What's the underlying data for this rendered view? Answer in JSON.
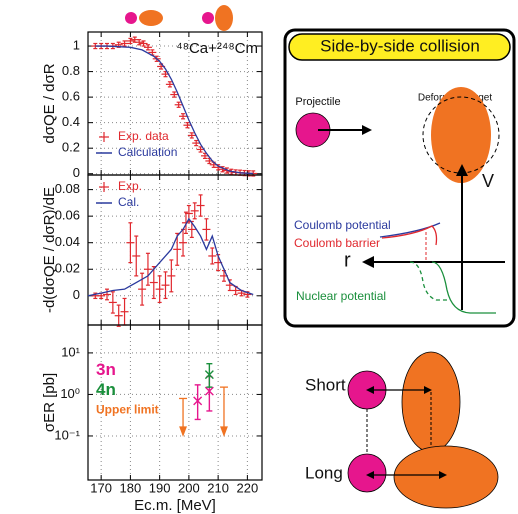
{
  "chart_data": [
    {
      "type": "errorbar",
      "ylabel": "dσQE / dσR",
      "annotation": "⁴⁸Ca+²⁴⁸Cm",
      "xlim": [
        165.5,
        225
      ],
      "xticks": [
        170,
        180,
        190,
        200,
        210,
        220
      ],
      "ylim": [
        -0.01,
        1.11
      ],
      "yticks": [
        0,
        0.2,
        0.4,
        0.6,
        0.8,
        1
      ],
      "grid": true,
      "legend": "lower left",
      "series": [
        {
          "name": "Exp. data",
          "type": "errorbar",
          "color": "#e0282e",
          "x": [
            168,
            170,
            172,
            174,
            176,
            178,
            180,
            181.5,
            183,
            184.5,
            186,
            187.5,
            189,
            190.5,
            192,
            193.5,
            195,
            196.5,
            198,
            199.5,
            201,
            202.5,
            204,
            205.5,
            207,
            208.5,
            210,
            211.5,
            213,
            214.5,
            216,
            217.5,
            219,
            220.5,
            222
          ],
          "values": [
            1.0,
            1.0,
            1.0,
            1.0,
            1.01,
            1.02,
            1.04,
            1.05,
            1.03,
            1.02,
            0.99,
            0.95,
            0.9,
            0.84,
            0.78,
            0.7,
            0.62,
            0.54,
            0.45,
            0.38,
            0.3,
            0.24,
            0.19,
            0.14,
            0.1,
            0.07,
            0.05,
            0.035,
            0.025,
            0.015,
            0.01,
            0.008,
            0.005,
            0.003,
            0.002
          ],
          "errors": [
            0.02,
            0.02,
            0.02,
            0.02,
            0.02,
            0.02,
            0.02,
            0.02,
            0.02,
            0.02,
            0.02,
            0.02,
            0.02,
            0.02,
            0.02,
            0.02,
            0.02,
            0.02,
            0.02,
            0.02,
            0.02,
            0.02,
            0.02,
            0.02,
            0.02,
            0.02,
            0.02,
            0.02,
            0.02,
            0.02,
            0.02,
            0.02,
            0.02,
            0.02,
            0.02
          ]
        },
        {
          "name": "Calculation",
          "type": "line",
          "color": "#2b3a9e",
          "x": [
            168,
            172,
            176,
            180,
            184,
            188,
            190,
            192,
            194,
            196,
            198,
            200,
            202,
            204,
            206,
            208,
            210,
            214,
            218,
            222
          ],
          "values": [
            1.0,
            1.0,
            0.995,
            0.99,
            0.97,
            0.92,
            0.88,
            0.82,
            0.74,
            0.64,
            0.53,
            0.42,
            0.32,
            0.23,
            0.16,
            0.1,
            0.06,
            0.02,
            0.006,
            0.002
          ]
        }
      ]
    },
    {
      "type": "errorbar",
      "ylabel": "-d(dσQE / dσR)/dE",
      "xlim": [
        165.5,
        225
      ],
      "xticks": [
        170,
        180,
        190,
        200,
        210,
        220
      ],
      "ylim": [
        -0.022,
        0.091
      ],
      "yticks": [
        0,
        0.02,
        0.04,
        0.06,
        0.08
      ],
      "grid": true,
      "legend": "upper left",
      "series": [
        {
          "name": "Exp.",
          "type": "errorbar",
          "color": "#e0282e",
          "x": [
            168,
            170,
            172,
            174,
            176,
            178,
            180,
            182,
            184,
            186,
            188,
            190,
            192,
            194,
            196,
            198,
            199,
            200,
            201,
            202,
            204,
            206,
            208,
            210,
            212,
            214,
            216,
            218,
            220
          ],
          "values": [
            0,
            0,
            0.001,
            -0.005,
            -0.015,
            -0.012,
            0.04,
            0.03,
            0.005,
            0.02,
            0.01,
            0.005,
            0.008,
            0.015,
            0.035,
            0.04,
            0.055,
            0.062,
            0.05,
            0.064,
            0.068,
            0.05,
            0.03,
            0.025,
            0.015,
            0.008,
            0.004,
            0.002,
            0.001
          ],
          "errors": [
            0.002,
            0.002,
            0.004,
            0.008,
            0.008,
            0.01,
            0.015,
            0.015,
            0.012,
            0.012,
            0.012,
            0.01,
            0.01,
            0.012,
            0.012,
            0.01,
            0.008,
            0.006,
            0.006,
            0.006,
            0.008,
            0.008,
            0.006,
            0.006,
            0.004,
            0.004,
            0.003,
            0.002,
            0.002
          ]
        },
        {
          "name": "Cal.",
          "type": "line",
          "color": "#2b3a9e",
          "x": [
            165.5,
            170,
            174,
            178,
            182,
            186,
            190,
            194,
            196,
            198,
            200,
            202,
            204,
            206,
            208,
            210,
            212,
            214,
            218,
            222
          ],
          "values": [
            0,
            0.002,
            0.004,
            0.005,
            0.01,
            0.015,
            0.025,
            0.035,
            0.045,
            0.05,
            0.058,
            0.052,
            0.045,
            0.035,
            0.045,
            0.03,
            0.02,
            0.01,
            0.004,
            0.001
          ]
        }
      ]
    },
    {
      "type": "errorbar",
      "ylabel": "σER [pb]",
      "xlabel": "Ec.m. [MeV]",
      "log_scale": true,
      "xlim": [
        165.5,
        225
      ],
      "xticks": [
        170,
        180,
        190,
        200,
        210,
        220
      ],
      "ylim": [
        0.0087,
        47
      ],
      "yticks": [
        {
          "value": 0.1,
          "label": "10⁻¹"
        },
        {
          "value": 1,
          "label": "10⁰"
        },
        {
          "value": 10,
          "label": "10¹"
        }
      ],
      "grid": true,
      "legend": "center left",
      "series": [
        {
          "name": "3n",
          "type": "asym",
          "color": "#e6168d",
          "x": [
            203,
            207
          ],
          "values": [
            0.7,
            1.2
          ],
          "err_low": [
            0.45,
            0.8
          ],
          "err_high": [
            1.0,
            1.5
          ]
        },
        {
          "name": "4n",
          "type": "asym",
          "color": "#1a8f3c",
          "x": [
            207
          ],
          "values": [
            3.0
          ],
          "err_low": [
            1.5
          ],
          "err_high": [
            2.5
          ]
        },
        {
          "name": "Upper limit",
          "type": "upper",
          "color": "#f07322",
          "x": [
            198,
            212
          ],
          "values": [
            0.8,
            1.5
          ]
        }
      ]
    }
  ],
  "diagram": {
    "title": "Side-by-side collision",
    "projectile": "Projectile",
    "target": "Deformed Target",
    "v_axis": "V",
    "r_axis": "r",
    "coulomb_potential": "Coulomb potential",
    "coulomb_barrier": "Coulomb barrier",
    "nuclear_potential": "Nuclear potential",
    "short": "Short",
    "long": "Long"
  }
}
